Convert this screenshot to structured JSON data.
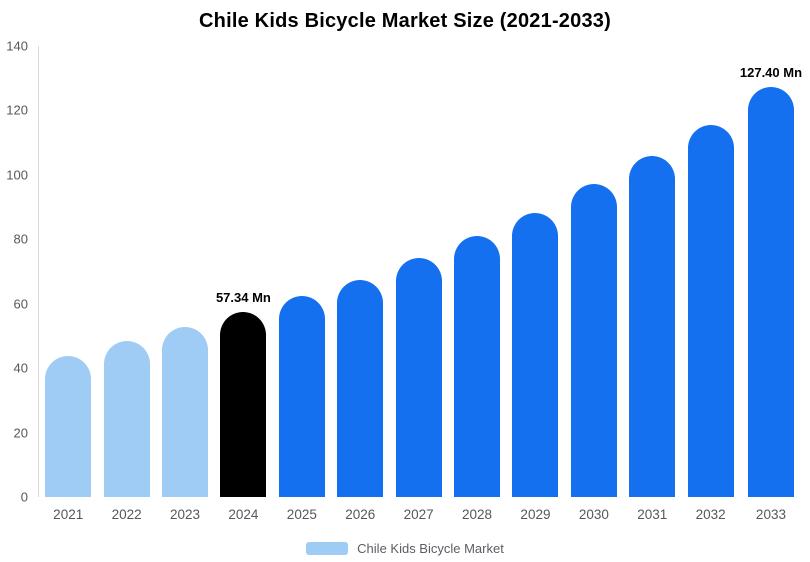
{
  "title": "Chile Kids Bicycle Market Size (2021-2033)",
  "legend": {
    "label": "Chile Kids Bicycle Market",
    "swatch_color": "#9fccf5"
  },
  "colors": {
    "historical": "#9fccf5",
    "base_year": "#000000",
    "forecast": "#1570ef",
    "axis_text": "#54585e",
    "axis_line": "#d9d9d9"
  },
  "chart_data": {
    "type": "bar",
    "title": "Chile Kids Bicycle Market Size (2021-2033)",
    "categories": [
      "2021",
      "2022",
      "2023",
      "2024",
      "2025",
      "2026",
      "2027",
      "2028",
      "2029",
      "2030",
      "2031",
      "2032",
      "2033"
    ],
    "values": [
      43.8,
      48.3,
      52.8,
      57.34,
      62.5,
      67.5,
      74.2,
      81.0,
      88.3,
      97.2,
      106.0,
      115.6,
      127.4
    ],
    "bar_colors": [
      "#9fccf5",
      "#9fccf5",
      "#9fccf5",
      "#000000",
      "#1570ef",
      "#1570ef",
      "#1570ef",
      "#1570ef",
      "#1570ef",
      "#1570ef",
      "#1570ef",
      "#1570ef",
      "#1570ef"
    ],
    "data_labels": [
      "",
      "",
      "",
      "57.34 Mn",
      "",
      "",
      "",
      "",
      "",
      "",
      "",
      "",
      "127.40 Mn"
    ],
    "xlabel": "",
    "ylabel": "",
    "ylim": [
      0,
      140
    ],
    "y_ticks": [
      0,
      20,
      40,
      60,
      80,
      100,
      120,
      140
    ],
    "grid": false,
    "legend_entries": [
      "Chile Kids Bicycle Market"
    ],
    "legend_position": "bottom",
    "units": "Mn"
  }
}
